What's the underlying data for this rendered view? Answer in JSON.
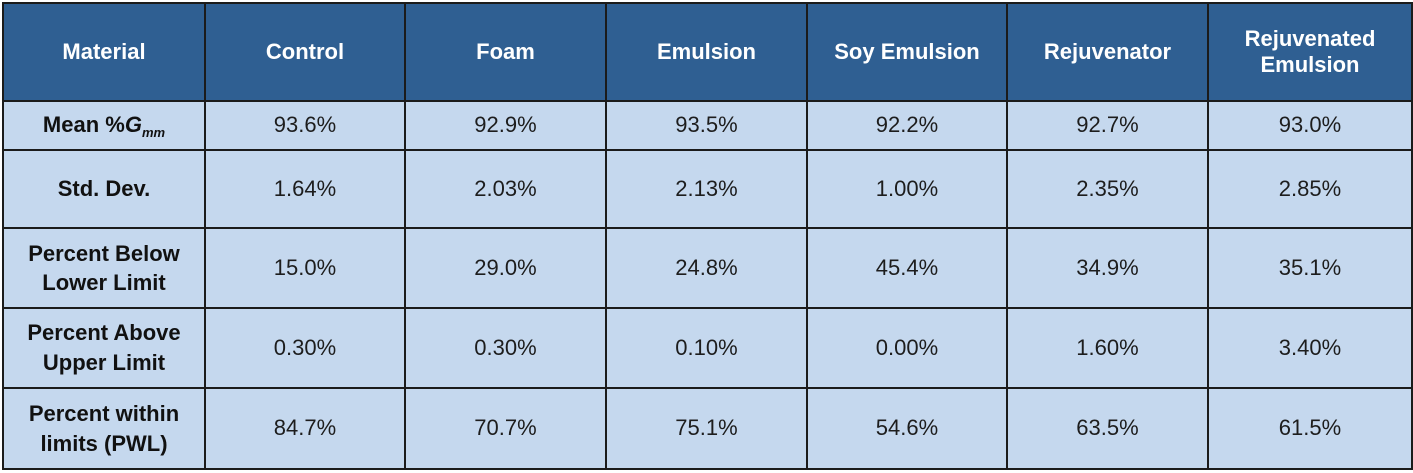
{
  "table": {
    "headers": [
      "Material",
      "Control",
      "Foam",
      "Emulsion",
      "Soy Emulsion",
      "Rejuvenator",
      "Rejuvenated Emulsion"
    ],
    "header_multiline": {
      "rejuvenated_emulsion": [
        "Rejuvenated",
        "Emulsion"
      ]
    },
    "rows": [
      {
        "label_parts": {
          "prefix": "Mean %",
          "symbol": "G",
          "subscript": "mm"
        },
        "values": [
          "93.6%",
          "92.9%",
          "93.5%",
          "92.2%",
          "92.7%",
          "93.0%"
        ]
      },
      {
        "label_lines": [
          "Std. Dev."
        ],
        "values": [
          "1.64%",
          "2.03%",
          "2.13%",
          "1.00%",
          "2.35%",
          "2.85%"
        ]
      },
      {
        "label_lines": [
          "Percent Below",
          "Lower Limit"
        ],
        "values": [
          "15.0%",
          "29.0%",
          "24.8%",
          "45.4%",
          "34.9%",
          "35.1%"
        ]
      },
      {
        "label_lines": [
          "Percent Above",
          "Upper Limit"
        ],
        "values": [
          "0.30%",
          "0.30%",
          "0.10%",
          "0.00%",
          "1.60%",
          "3.40%"
        ]
      },
      {
        "label_lines": [
          "Percent within",
          "limits (PWL)"
        ],
        "values": [
          "84.7%",
          "70.7%",
          "75.1%",
          "54.6%",
          "63.5%",
          "61.5%"
        ]
      }
    ]
  },
  "colors": {
    "header_bg": "#2f5f92",
    "header_text": "#ffffff",
    "body_bg": "#c5d8ee",
    "border": "#1b1b1b"
  }
}
